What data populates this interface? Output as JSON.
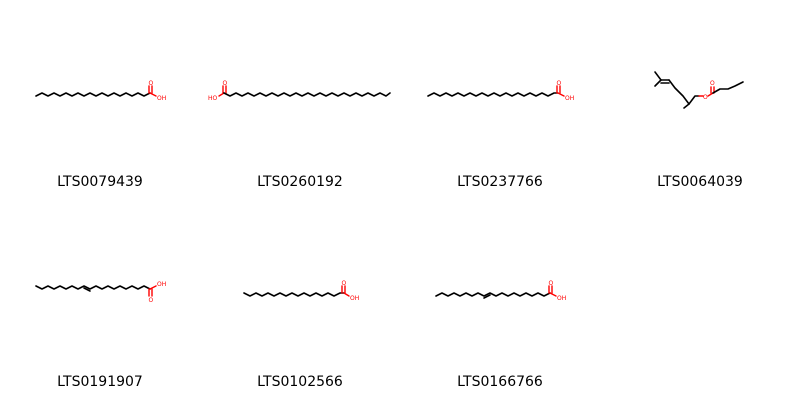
{
  "molecules": [
    {
      "id": "LTS0079439",
      "smiles": "CCCCCCCCCCCCCCCC(=O)O"
    },
    {
      "id": "LTS0260192",
      "smiles": "OC(=O)CCCCCCCCCCCCCCCCCCCCCCCC"
    },
    {
      "id": "LTS0237766",
      "smiles": "CCCCCCCCCCCCCCCCCC(=O)O"
    },
    {
      "id": "LTS0064039",
      "smiles": "CCCCC(=O)OCCC(C)CCC=C(C)C"
    },
    {
      "id": "LTS0191907",
      "smiles": "CCCCCCCC=CCCCCCCCC(=O)O"
    },
    {
      "id": "LTS0102566",
      "smiles": "CCCCCCCCCCCCCC(=O)O"
    },
    {
      "id": "LTS0166766",
      "smiles": "CCCCCCCC=CCCCCCCCC(=O)O"
    }
  ],
  "atom_labels": {
    "oxygen": "O",
    "hydroxyl": "OH",
    "hydroxyl_left": "HO"
  },
  "colors": {
    "bond": "#000000",
    "heteroatom": "#ff0000",
    "label": "#000000",
    "background": "#ffffff"
  }
}
